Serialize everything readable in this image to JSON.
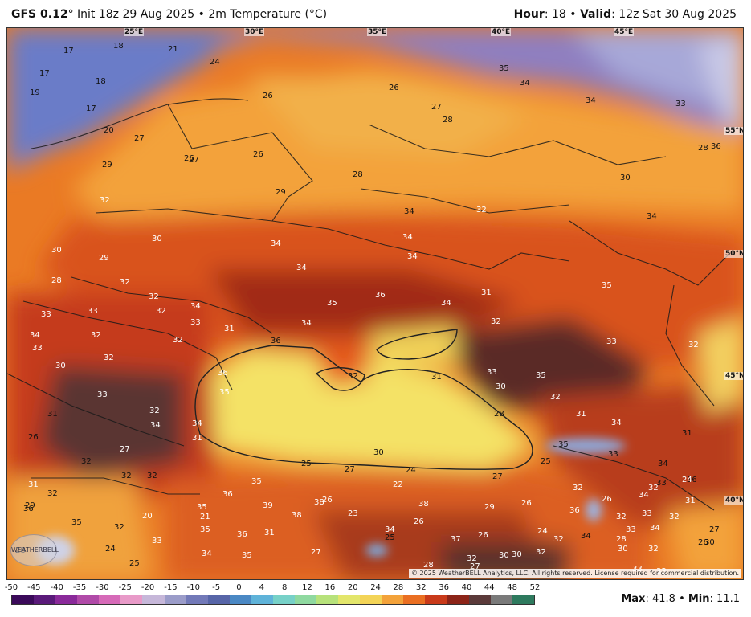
{
  "header": {
    "model": "GFS 0.12",
    "degree": "°",
    "init": "Init 18z 29 Aug 2025",
    "bullet": "•",
    "field": "2m Temperature (°C)",
    "hour_label": "Hour",
    "hour_value": "18",
    "valid_label": "Valid",
    "valid_value": "12z Sat 30 Aug 2025"
  },
  "map": {
    "longitude_labels": [
      "25°E",
      "30°E",
      "35°E",
      "40°E",
      "45°E"
    ],
    "latitude_labels": [
      "55°N",
      "50°N",
      "45°N",
      "40°N"
    ],
    "temperature_labels": [
      "17",
      "18",
      "21",
      "24",
      "17",
      "18",
      "19",
      "17",
      "20",
      "27",
      "29",
      "26",
      "26",
      "27",
      "26",
      "26",
      "27",
      "28",
      "28",
      "29",
      "32",
      "30",
      "29",
      "30",
      "28",
      "32",
      "32",
      "32",
      "33",
      "33",
      "34",
      "33",
      "32",
      "31",
      "34",
      "33",
      "32",
      "30",
      "32",
      "34",
      "34",
      "34",
      "35",
      "36",
      "34",
      "34",
      "31",
      "32",
      "33",
      "32",
      "35",
      "34",
      "32",
      "34",
      "30",
      "34",
      "28",
      "36",
      "33",
      "34",
      "34",
      "35",
      "36",
      "32",
      "31",
      "28",
      "30",
      "27",
      "25",
      "24",
      "25",
      "27",
      "35",
      "33",
      "34",
      "36",
      "33",
      "35",
      "33",
      "30",
      "32",
      "31",
      "34",
      "31",
      "36",
      "35",
      "33",
      "32",
      "34",
      "34",
      "31",
      "26",
      "31",
      "27",
      "32",
      "32",
      "32",
      "31",
      "32",
      "36",
      "35",
      "32",
      "33",
      "35",
      "36",
      "35",
      "39",
      "38",
      "38",
      "35",
      "36",
      "31",
      "34",
      "35",
      "27",
      "25",
      "34",
      "38",
      "37",
      "26",
      "29",
      "26",
      "24",
      "36",
      "32",
      "34",
      "26",
      "28",
      "32",
      "24",
      "30",
      "32",
      "33",
      "33",
      "26",
      "27",
      "30",
      "28",
      "29",
      "25",
      "24",
      "20",
      "21",
      "22",
      "23",
      "26",
      "26",
      "27",
      "28",
      "30",
      "30",
      "32",
      "32",
      "32",
      "34",
      "33",
      "34",
      "32",
      "31",
      "32",
      "33"
    ],
    "copyright": "© 2025 WeatherBELL Analytics, LLC. All rights reserved. License required for commercial distribution.",
    "logo_text": "WEATHERBELL"
  },
  "colorbar": {
    "ticks": [
      "-50",
      "-45",
      "-40",
      "-35",
      "-30",
      "-25",
      "-20",
      "-15",
      "-10",
      "-5",
      "0",
      "4",
      "8",
      "12",
      "16",
      "20",
      "24",
      "28",
      "32",
      "36",
      "40",
      "44",
      "48",
      "52"
    ],
    "colors": [
      "#3b0a5a",
      "#5a1a7a",
      "#8a2a9a",
      "#b04aa8",
      "#d66ab8",
      "#e89ac8",
      "#c6b7d9",
      "#9b9cc9",
      "#7279b8",
      "#5765a8",
      "#4a88c4",
      "#5fb3d9",
      "#77d1c8",
      "#8fd9a0",
      "#b7e27b",
      "#e3e66b",
      "#f3d457",
      "#f3a23a",
      "#ea6f22",
      "#c93a1a",
      "#8c2418",
      "#5b3a3a",
      "#7a7a7a",
      "#2e7a5e"
    ]
  },
  "stats": {
    "max_label": "Max",
    "max_value": "41.8",
    "min_label": "Min",
    "min_value": "11.1"
  }
}
